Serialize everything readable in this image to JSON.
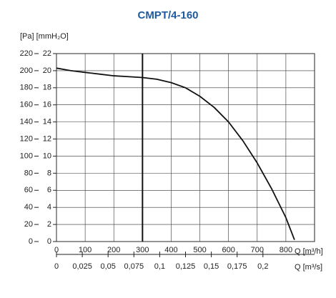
{
  "chart_data": {
    "type": "line",
    "title": "CMPT/4-160",
    "y_label": "[Pa] [mmH₂O]",
    "x_label": "Q [m³/h]",
    "x2_label": "Q [m³/s]",
    "x": [
      0,
      50,
      100,
      150,
      200,
      250,
      300,
      350,
      400,
      450,
      500,
      550,
      600,
      650,
      700,
      750,
      800,
      830
    ],
    "series": [
      {
        "name": "CMPT/4-160",
        "color": "#111111",
        "values": [
          203,
          200,
          198,
          196,
          194,
          193,
          192,
          190,
          186,
          180,
          170,
          157,
          140,
          118,
          92,
          62,
          28,
          2
        ]
      }
    ],
    "marker_x": 300,
    "xlim": [
      0,
      900
    ],
    "xticks": [
      0,
      100,
      200,
      300,
      400,
      500,
      600,
      700,
      800
    ],
    "x2lim": [
      0,
      0.25
    ],
    "x2ticks": [
      0,
      {
        "value": 0.025,
        "label": "0,025"
      },
      {
        "value": 0.05,
        "label": "0,05"
      },
      {
        "value": 0.075,
        "label": "0,075"
      },
      {
        "value": 0.1,
        "label": "0,1"
      },
      {
        "value": 0.125,
        "label": "0,125"
      },
      {
        "value": 0.15,
        "label": "0,15"
      },
      {
        "value": 0.175,
        "label": "0,175"
      },
      {
        "value": 0.2,
        "label": "0,2"
      }
    ],
    "ylim": [
      0,
      220
    ],
    "yticks": [
      0,
      20,
      40,
      60,
      80,
      100,
      120,
      140,
      160,
      180,
      200,
      220
    ],
    "y2lim": [
      0,
      22
    ],
    "y2ticks": [
      0,
      2,
      4,
      6,
      8,
      10,
      12,
      14,
      16,
      18,
      20,
      22
    ],
    "grid": true
  }
}
